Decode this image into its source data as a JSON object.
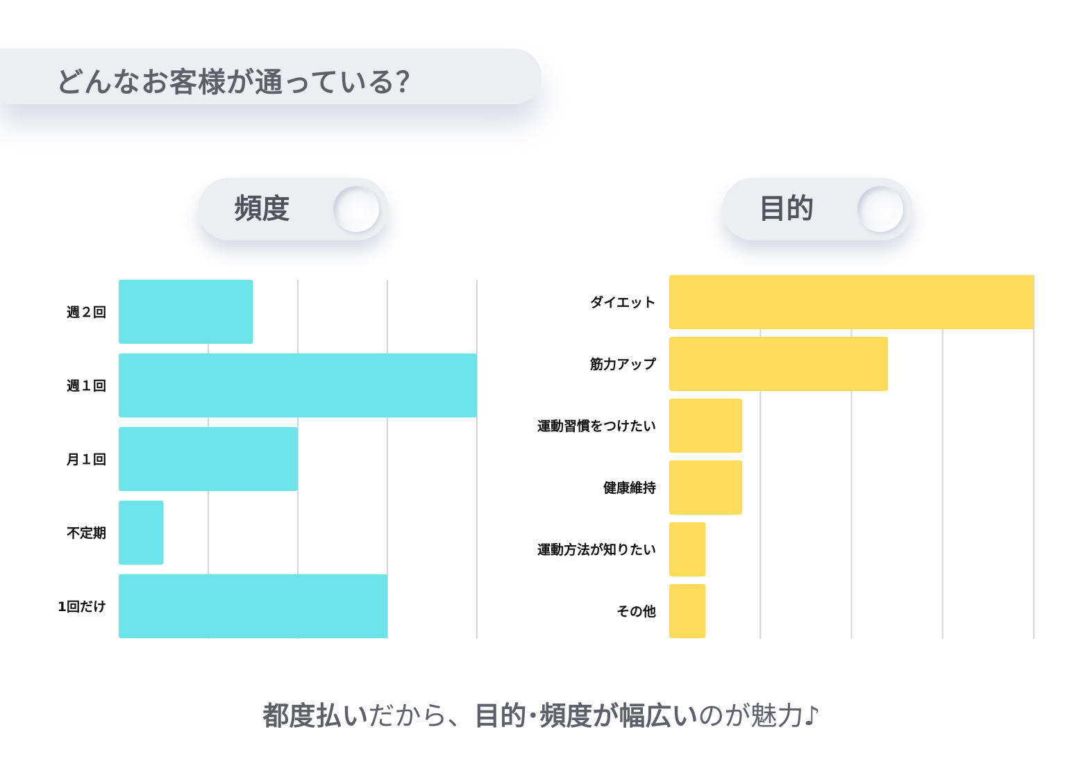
{
  "header": {
    "title": "どんなお客様が通っている？"
  },
  "panels": {
    "left": {
      "label": "頻度"
    },
    "right": {
      "label": "目的"
    }
  },
  "footer": {
    "part1": "都度払い",
    "part2": "だから、",
    "part3": "目的･頻度が幅広い",
    "part4": "のが魅力♪"
  },
  "colors": {
    "left_bar": "#6ce3e8",
    "right_bar": "#ffdc5c",
    "grid": "#d4d6da"
  },
  "chart_data": [
    {
      "type": "bar",
      "orientation": "horizontal",
      "title": "頻度",
      "categories": [
        "週２回",
        "週１回",
        "月１回",
        "不定期",
        "1回だけ"
      ],
      "values": [
        1.5,
        4,
        2,
        0.5,
        3
      ],
      "xlim": [
        0,
        4
      ],
      "grid": true,
      "legend": "none"
    },
    {
      "type": "bar",
      "orientation": "horizontal",
      "title": "目的",
      "categories": [
        "ダイエット",
        "筋力アップ",
        "運動習慣をつけたい",
        "健康維持",
        "運動方法が知りたい",
        "その他"
      ],
      "values": [
        4,
        2.4,
        0.8,
        0.8,
        0.4,
        0.4
      ],
      "xlim": [
        0,
        4
      ],
      "grid": true,
      "legend": "none"
    }
  ]
}
